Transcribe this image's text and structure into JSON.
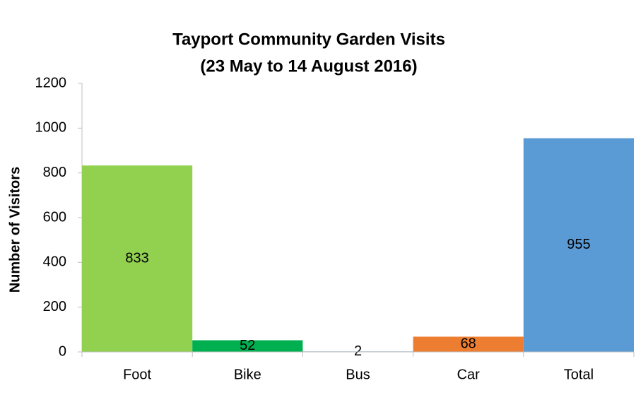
{
  "chart_data": {
    "type": "bar",
    "title": "Tayport Community Garden Visits",
    "subtitle": "(23 May to 14 August 2016)",
    "y_label": "Number of Visitors",
    "categories": [
      "Foot",
      "Bike",
      "Bus",
      "Car",
      "Total"
    ],
    "values": [
      833,
      52,
      2,
      68,
      955
    ],
    "colors": [
      "#92d050",
      "#00b050",
      "#4472c4",
      "#ed7d31",
      "#5b9bd5"
    ],
    "ylim": [
      0,
      1200
    ],
    "yticks": [
      0,
      200,
      400,
      600,
      800,
      1000,
      1200
    ],
    "grid": false
  }
}
